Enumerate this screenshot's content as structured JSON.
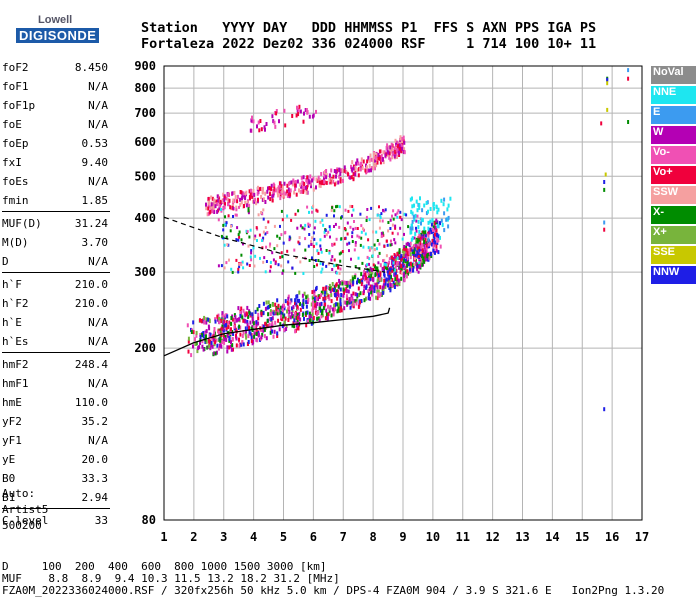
{
  "logo": {
    "line1": "Lowell",
    "line2": "DIGISONDE"
  },
  "header": {
    "line1": "Station   YYYY DAY   DDD HHMMSS P1  FFS S AXN PPS IGA PS",
    "line2": "Fortaleza 2022 Dez02 336 024000 RSF     1 714 100 10+ 11"
  },
  "params": [
    {
      "k": "foF2",
      "v": "8.450"
    },
    {
      "k": "foF1",
      "v": "N/A"
    },
    {
      "k": "foF1p",
      "v": "N/A"
    },
    {
      "k": "foE",
      "v": "N/A"
    },
    {
      "k": "foEp",
      "v": "0.53"
    },
    {
      "k": "fxI",
      "v": "9.40"
    },
    {
      "k": "foEs",
      "v": "N/A"
    },
    {
      "k": "fmin",
      "v": "1.85"
    },
    {
      "k": "MUF(D)",
      "v": "31.24"
    },
    {
      "k": "M(D)",
      "v": "3.70"
    },
    {
      "k": "D",
      "v": "N/A"
    },
    {
      "k": "h`F",
      "v": "210.0"
    },
    {
      "k": "h`F2",
      "v": "210.0"
    },
    {
      "k": "h`E",
      "v": "N/A"
    },
    {
      "k": "h`Es",
      "v": "N/A"
    },
    {
      "k": "hmF2",
      "v": "248.4"
    },
    {
      "k": "hmF1",
      "v": "N/A"
    },
    {
      "k": "hmE",
      "v": "110.0"
    },
    {
      "k": "yF2",
      "v": "35.2"
    },
    {
      "k": "yF1",
      "v": "N/A"
    },
    {
      "k": "yE",
      "v": "20.0"
    },
    {
      "k": "B0",
      "v": "33.3"
    },
    {
      "k": "B1",
      "v": "2.94"
    },
    {
      "k": "C-level",
      "v": "33"
    }
  ],
  "auto": {
    "line1": "Auto:",
    "line2": "Artist5",
    "line3": "500200"
  },
  "legend": [
    {
      "label": "NoVal",
      "color": "#8c8c8c"
    },
    {
      "label": "NNE",
      "color": "#1ee6f0"
    },
    {
      "label": "E",
      "color": "#3c9bf0"
    },
    {
      "label": "W",
      "color": "#b400b4"
    },
    {
      "label": "Vo-",
      "color": "#f050b4"
    },
    {
      "label": "Vo+",
      "color": "#f0003c"
    },
    {
      "label": "SSW",
      "color": "#f5a0a0"
    },
    {
      "label": "X-",
      "color": "#008c00"
    },
    {
      "label": "X+",
      "color": "#78b43c"
    },
    {
      "label": "SSE",
      "color": "#c8c800"
    },
    {
      "label": "NNW",
      "color": "#1e1ee6"
    }
  ],
  "footer": {
    "line1": "D     100  200  400  600  800 1000 1500 3000 [km]",
    "line2": "MUF    8.8  8.9  9.4 10.3 11.5 13.2 18.2 31.2 [MHz]",
    "line3": "FZA0M_2022336024000.RSF / 320fx256h 50 kHz 5.0 km / DPS-4 FZA0M 904 / 3.9 S 321.6 E   Ion2Png 1.3.20"
  },
  "chart_data": {
    "type": "scatter",
    "xlim": [
      1,
      17
    ],
    "ylim": [
      80,
      900
    ],
    "y_scale": "log",
    "x_ticks": [
      1,
      2,
      3,
      4,
      5,
      6,
      7,
      8,
      9,
      10,
      11,
      12,
      13,
      14,
      15,
      16,
      17
    ],
    "y_ticks": [
      80,
      200,
      300,
      400,
      500,
      600,
      700,
      800,
      900
    ],
    "grid": true,
    "profile_solid": [
      [
        1,
        192
      ],
      [
        2,
        206
      ],
      [
        3,
        216
      ],
      [
        4,
        221
      ],
      [
        5,
        226
      ],
      [
        6,
        229
      ],
      [
        7,
        233
      ],
      [
        8,
        237
      ],
      [
        8.5,
        241
      ],
      [
        8.55,
        248
      ]
    ],
    "profile_dashed": [
      [
        1,
        402
      ],
      [
        2,
        380
      ],
      [
        3,
        360
      ],
      [
        4,
        345
      ],
      [
        5,
        330
      ],
      [
        6,
        320
      ],
      [
        7,
        310
      ],
      [
        8,
        303
      ],
      [
        8.4,
        300
      ]
    ],
    "traces": [
      {
        "name": "o-trace",
        "points": [
          [
            1.8,
            212
          ],
          [
            2.5,
            220
          ],
          [
            3,
            226
          ],
          [
            4,
            234
          ],
          [
            5,
            243
          ],
          [
            6,
            255
          ],
          [
            7,
            268
          ],
          [
            8,
            285
          ],
          [
            8.5,
            298
          ],
          [
            9,
            315
          ],
          [
            9.5,
            335
          ],
          [
            9.8,
            355
          ]
        ]
      },
      {
        "name": "x-trace",
        "points": [
          [
            2.6,
            212
          ],
          [
            3.5,
            222
          ],
          [
            4.5,
            232
          ],
          [
            5.5,
            244
          ],
          [
            6.5,
            258
          ],
          [
            7.5,
            276
          ],
          [
            8.5,
            300
          ],
          [
            9.2,
            325
          ],
          [
            9.8,
            350
          ],
          [
            10.2,
            375
          ]
        ]
      },
      {
        "name": "2nd-hop",
        "points": [
          [
            2.4,
            430
          ],
          [
            3,
            440
          ],
          [
            4,
            452
          ],
          [
            5,
            470
          ],
          [
            6,
            488
          ],
          [
            7,
            510
          ],
          [
            8,
            548
          ],
          [
            8.7,
            580
          ],
          [
            9,
            600
          ]
        ]
      },
      {
        "name": "3rd-hop",
        "points": [
          [
            3.8,
            660
          ],
          [
            4.5,
            680
          ],
          [
            5.5,
            700
          ],
          [
            6,
            710
          ]
        ]
      }
    ]
  }
}
